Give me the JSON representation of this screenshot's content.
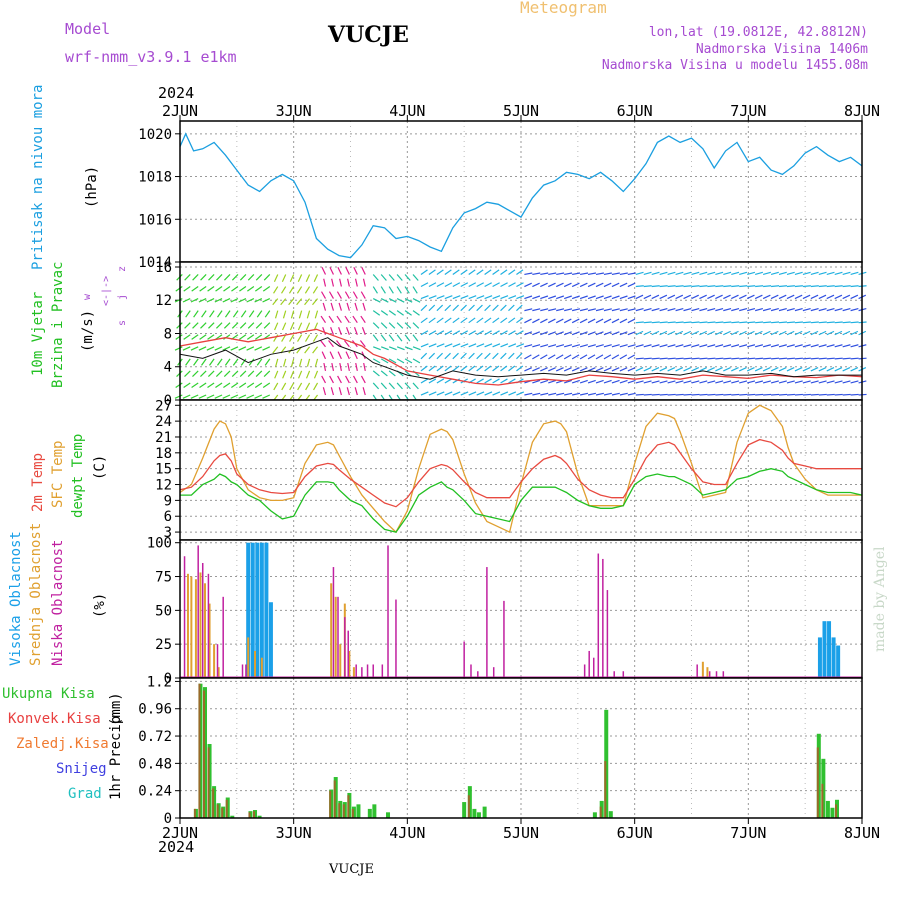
{
  "header": {
    "model_label": "Model",
    "model_name": "wrf-nmm_v3.9.1  e1km",
    "title": "VUCJE",
    "meteogram": "Meteogram",
    "coords": "lon,lat (19.0812E, 42.8812N)",
    "elevation": "Nadmorska Visina 1406m",
    "model_elevation": "Nadmorska Visina u modelu 1455.08m",
    "year_top": "2024",
    "year_bottom": "2024",
    "footer_station": "VUCJE",
    "watermark": "made by Angel"
  },
  "colors": {
    "pressure": "#1b9fe0",
    "wind_speed": "#111111",
    "wind_gust": "#e84040",
    "temp2m": "#e84a40",
    "sfc_temp": "#e0a030",
    "dewpt": "#22c022",
    "cloud_high": "#1ba0e8",
    "cloud_mid": "#e0a030",
    "cloud_low": "#c020a0",
    "precip_total": "#30c030",
    "precip_conv": "#e84040",
    "precip_frozen": "#f07a30",
    "snow": "#4040e0",
    "hail": "#20c0c0"
  },
  "chart_data": [
    {
      "type": "line",
      "name": "pressure",
      "ylabel": "Pritisak na nivou mora",
      "unit": "(hPa)",
      "ylim": [
        1014,
        1020.6
      ],
      "yticks": [
        1014,
        1016,
        1018,
        1020
      ],
      "grid": true,
      "x_days": [
        0,
        0.05,
        0.12,
        0.2,
        0.3,
        0.4,
        0.5,
        0.6,
        0.7,
        0.8,
        0.9,
        1.0,
        1.1,
        1.2,
        1.3,
        1.4,
        1.5,
        1.6,
        1.7,
        1.8,
        1.9,
        2.0,
        2.1,
        2.2,
        2.3,
        2.4,
        2.5,
        2.6,
        2.7,
        2.8,
        2.9,
        3.0,
        3.1,
        3.2,
        3.3,
        3.4,
        3.5,
        3.6,
        3.7,
        3.8,
        3.9,
        4.0,
        4.1,
        4.2,
        4.3,
        4.4,
        4.5,
        4.6,
        4.7,
        4.8,
        4.9,
        5.0,
        5.1,
        5.2,
        5.3,
        5.4,
        5.5,
        5.6,
        5.7,
        5.8,
        5.9,
        6.0
      ],
      "values": [
        1019.4,
        1020.0,
        1019.2,
        1019.3,
        1019.6,
        1019.0,
        1018.3,
        1017.6,
        1017.3,
        1017.8,
        1018.1,
        1017.8,
        1016.8,
        1015.1,
        1014.6,
        1014.3,
        1014.2,
        1014.8,
        1015.7,
        1015.6,
        1015.1,
        1015.2,
        1015.0,
        1014.7,
        1014.5,
        1015.6,
        1016.3,
        1016.5,
        1016.8,
        1016.7,
        1016.4,
        1016.1,
        1017.0,
        1017.6,
        1017.8,
        1018.2,
        1018.1,
        1017.9,
        1018.2,
        1017.8,
        1017.3,
        1017.9,
        1018.6,
        1019.6,
        1019.9,
        1019.6,
        1019.8,
        1019.3,
        1018.4,
        1019.2,
        1019.6,
        1018.7,
        1018.9,
        1018.3,
        1018.1,
        1018.5,
        1019.1,
        1019.4,
        1019.0,
        1018.7,
        1018.9,
        1018.5
      ]
    },
    {
      "type": "line",
      "name": "wind",
      "ylabel_1": "10m Vjetar",
      "ylabel_2": "Brzina i Pravac",
      "unit": "(m/s)",
      "compass_1": "w",
      "compass_2": "<-|->",
      "compass_3": "z",
      "compass_4": "s",
      "compass_5": "j",
      "ylim": [
        0,
        16.6
      ],
      "yticks": [
        0,
        4,
        8,
        12,
        16
      ],
      "grid": true,
      "x_days": [
        0,
        0.2,
        0.4,
        0.6,
        0.8,
        1.0,
        1.2,
        1.3,
        1.4,
        1.5,
        1.6,
        1.7,
        1.8,
        2.0,
        2.2,
        2.4,
        2.6,
        2.8,
        3.0,
        3.2,
        3.4,
        3.6,
        3.8,
        4.0,
        4.2,
        4.4,
        4.6,
        4.8,
        5.0,
        5.2,
        5.4,
        5.6,
        5.8,
        6.0
      ],
      "speed": [
        5.5,
        5.0,
        6.0,
        4.5,
        5.5,
        6.0,
        7.0,
        7.5,
        6.5,
        6.0,
        5.5,
        4.5,
        4.0,
        3.0,
        2.5,
        3.5,
        3.0,
        2.8,
        3.0,
        3.2,
        3.0,
        3.5,
        3.2,
        3.0,
        3.2,
        3.0,
        3.5,
        3.0,
        3.0,
        3.2,
        2.8,
        3.0,
        3.0,
        3.0
      ],
      "gust": [
        6.5,
        7.0,
        7.5,
        7.0,
        7.5,
        8.0,
        8.5,
        8.0,
        7.5,
        7.0,
        6.5,
        5.5,
        5.0,
        3.5,
        3.0,
        2.5,
        2.0,
        1.8,
        2.2,
        2.5,
        2.3,
        3.0,
        2.8,
        2.5,
        2.8,
        2.5,
        3.0,
        2.8,
        2.6,
        3.0,
        2.8,
        2.7,
        3.0,
        2.8
      ]
    },
    {
      "type": "line",
      "name": "temperature",
      "ylabel_1": "2m Temp",
      "ylabel_2": "SFC Temp",
      "ylabel_3": "dewpt Temp",
      "unit": "(C)",
      "ylim": [
        1.5,
        28
      ],
      "yticks": [
        3,
        6,
        9,
        12,
        15,
        18,
        21,
        24,
        27
      ],
      "grid": true,
      "x_days": [
        0,
        0.1,
        0.2,
        0.3,
        0.35,
        0.4,
        0.45,
        0.5,
        0.6,
        0.7,
        0.8,
        0.9,
        1.0,
        1.1,
        1.2,
        1.3,
        1.35,
        1.4,
        1.5,
        1.6,
        1.7,
        1.8,
        1.9,
        2.0,
        2.1,
        2.2,
        2.3,
        2.35,
        2.4,
        2.5,
        2.6,
        2.7,
        2.8,
        2.9,
        3.0,
        3.1,
        3.2,
        3.3,
        3.35,
        3.4,
        3.5,
        3.6,
        3.7,
        3.8,
        3.9,
        4.0,
        4.1,
        4.2,
        4.3,
        4.35,
        4.4,
        4.5,
        4.6,
        4.7,
        4.8,
        4.9,
        5.0,
        5.1,
        5.2,
        5.3,
        5.35,
        5.4,
        5.5,
        5.6,
        5.7,
        5.8,
        5.9,
        6.0
      ],
      "t2m": [
        11.0,
        11.5,
        13.5,
        16.5,
        17.5,
        17.8,
        16.5,
        14.0,
        12.0,
        11.0,
        10.5,
        10.3,
        10.5,
        13.5,
        15.5,
        16.0,
        15.8,
        14.8,
        13.0,
        11.5,
        10.0,
        8.5,
        7.8,
        9.5,
        12.5,
        15.0,
        15.8,
        15.5,
        14.8,
        12.5,
        10.5,
        9.5,
        9.5,
        9.5,
        12.5,
        15.0,
        16.8,
        17.5,
        17.0,
        16.0,
        13.0,
        11.0,
        10.0,
        9.5,
        9.5,
        13.0,
        17.0,
        19.5,
        20.0,
        19.5,
        18.0,
        15.0,
        12.5,
        12.0,
        12.0,
        16.0,
        19.5,
        20.5,
        20.0,
        18.5,
        17.0,
        16.0,
        15.5,
        15.0,
        15.0,
        15.0,
        15.0,
        15.0
      ],
      "sfc": [
        10.5,
        12.0,
        17.0,
        22.5,
        24.0,
        23.5,
        21.0,
        15.0,
        11.0,
        9.5,
        9.0,
        9.0,
        9.5,
        16.0,
        19.5,
        20.0,
        19.5,
        17.5,
        13.5,
        10.0,
        7.5,
        5.0,
        3.0,
        7.0,
        15.0,
        21.5,
        22.5,
        22.0,
        20.5,
        14.0,
        8.5,
        5.0,
        4.0,
        3.0,
        12.0,
        20.0,
        23.5,
        24.0,
        23.5,
        22.0,
        14.0,
        8.0,
        8.0,
        8.0,
        8.0,
        16.0,
        23.0,
        25.5,
        25.0,
        24.5,
        22.0,
        16.0,
        9.5,
        10.0,
        10.5,
        20.0,
        25.5,
        27.0,
        26.0,
        23.0,
        19.0,
        16.0,
        13.0,
        11.0,
        10.0,
        10.0,
        10.0,
        10.0
      ],
      "dewpt": [
        10.0,
        10.0,
        12.0,
        13.0,
        14.0,
        13.5,
        12.5,
        12.0,
        10.0,
        9.0,
        7.0,
        5.5,
        6.0,
        10.0,
        12.5,
        12.5,
        12.3,
        11.0,
        9.0,
        8.0,
        5.5,
        3.5,
        3.0,
        6.0,
        10.0,
        11.5,
        12.5,
        11.5,
        11.0,
        9.0,
        6.5,
        6.0,
        5.5,
        5.0,
        9.0,
        11.5,
        11.5,
        11.5,
        11.0,
        10.5,
        9.0,
        8.0,
        7.5,
        7.5,
        8.0,
        12.0,
        13.5,
        14.0,
        13.5,
        13.5,
        13.0,
        12.0,
        10.0,
        10.5,
        11.0,
        13.0,
        13.5,
        14.5,
        15.0,
        14.5,
        13.5,
        13.0,
        12.0,
        11.0,
        10.5,
        10.5,
        10.5,
        10.0
      ]
    },
    {
      "type": "bar",
      "name": "cloud_cover",
      "ylabel_1": "Visoka Oblacnost",
      "ylabel_2": "Srednja Oblacnost",
      "ylabel_3": "Niska Oblacnost",
      "unit": "(%)",
      "ylim": [
        0,
        102
      ],
      "yticks": [
        0,
        25,
        50,
        75,
        100
      ],
      "grid": true,
      "high": [
        [
          0.6,
          100
        ],
        [
          0.64,
          100
        ],
        [
          0.68,
          100
        ],
        [
          0.72,
          100
        ],
        [
          0.76,
          100
        ],
        [
          0.8,
          56
        ],
        [
          5.63,
          30
        ],
        [
          5.67,
          42
        ],
        [
          5.71,
          42
        ],
        [
          5.75,
          30
        ],
        [
          5.79,
          24
        ],
        [
          6.55,
          22
        ],
        [
          6.59,
          34
        ],
        [
          6.63,
          100
        ],
        [
          6.67,
          88
        ],
        [
          6.71,
          50
        ]
      ],
      "mid": [
        [
          0.07,
          77
        ],
        [
          0.1,
          75
        ],
        [
          0.14,
          73
        ],
        [
          0.18,
          78
        ],
        [
          0.22,
          70
        ],
        [
          0.26,
          55
        ],
        [
          0.3,
          25
        ],
        [
          0.34,
          8
        ],
        [
          0.6,
          30
        ],
        [
          0.66,
          20
        ],
        [
          0.72,
          15
        ],
        [
          1.33,
          70
        ],
        [
          1.37,
          60
        ],
        [
          1.41,
          25
        ],
        [
          1.45,
          55
        ],
        [
          1.49,
          20
        ],
        [
          1.53,
          8
        ],
        [
          4.6,
          12
        ],
        [
          4.64,
          8
        ],
        [
          6.4,
          5
        ],
        [
          6.52,
          25
        ],
        [
          6.56,
          28
        ],
        [
          6.6,
          40
        ],
        [
          6.64,
          30
        ],
        [
          6.72,
          20
        ],
        [
          6.76,
          5
        ]
      ],
      "low": [
        [
          0.04,
          90
        ],
        [
          0.16,
          98
        ],
        [
          0.2,
          85
        ],
        [
          0.25,
          77
        ],
        [
          0.33,
          25
        ],
        [
          0.38,
          60
        ],
        [
          0.55,
          10
        ],
        [
          0.58,
          10
        ],
        [
          1.35,
          82
        ],
        [
          1.39,
          60
        ],
        [
          1.45,
          45
        ],
        [
          1.48,
          35
        ],
        [
          1.55,
          10
        ],
        [
          1.6,
          8
        ],
        [
          1.65,
          10
        ],
        [
          1.7,
          10
        ],
        [
          1.78,
          10
        ],
        [
          1.83,
          98
        ],
        [
          1.9,
          58
        ],
        [
          2.5,
          27
        ],
        [
          2.56,
          10
        ],
        [
          2.62,
          5
        ],
        [
          2.7,
          82
        ],
        [
          2.76,
          8
        ],
        [
          2.85,
          57
        ],
        [
          3.56,
          10
        ],
        [
          3.6,
          20
        ],
        [
          3.64,
          15
        ],
        [
          3.68,
          92
        ],
        [
          3.72,
          88
        ],
        [
          3.76,
          65
        ],
        [
          3.82,
          5
        ],
        [
          3.9,
          5
        ],
        [
          4.55,
          10
        ],
        [
          4.66,
          5
        ],
        [
          4.72,
          5
        ],
        [
          4.78,
          5
        ],
        [
          6.55,
          85
        ],
        [
          6.6,
          35
        ],
        [
          6.64,
          28
        ],
        [
          6.68,
          10
        ]
      ]
    },
    {
      "type": "bar",
      "name": "precipitation",
      "ylabel_1": "1hr Precip",
      "unit": "(mm)",
      "legend": [
        "Ukupna  Kisa",
        "Konvek.Kisa",
        "Zaledj.Kisa",
        "Snijeg",
        "Grad"
      ],
      "ylim": [
        0,
        1.23
      ],
      "yticks": [
        0,
        0.24,
        0.48,
        0.72,
        0.96,
        1.2
      ],
      "ytick_labels": [
        "0",
        "0.24",
        "0.48",
        "0.72",
        "0.96",
        "1.2"
      ],
      "grid": true,
      "total": [
        [
          0.14,
          0.08
        ],
        [
          0.18,
          1.18
        ],
        [
          0.22,
          1.15
        ],
        [
          0.26,
          0.65
        ],
        [
          0.3,
          0.28
        ],
        [
          0.34,
          0.13
        ],
        [
          0.38,
          0.1
        ],
        [
          0.42,
          0.18
        ],
        [
          0.46,
          0.02
        ],
        [
          0.62,
          0.06
        ],
        [
          0.66,
          0.07
        ],
        [
          0.7,
          0.02
        ],
        [
          1.33,
          0.25
        ],
        [
          1.37,
          0.36
        ],
        [
          1.41,
          0.15
        ],
        [
          1.45,
          0.14
        ],
        [
          1.49,
          0.22
        ],
        [
          1.53,
          0.1
        ],
        [
          1.57,
          0.12
        ],
        [
          1.67,
          0.08
        ],
        [
          1.71,
          0.12
        ],
        [
          1.83,
          0.05
        ],
        [
          2.5,
          0.14
        ],
        [
          2.55,
          0.28
        ],
        [
          2.59,
          0.08
        ],
        [
          2.63,
          0.05
        ],
        [
          2.68,
          0.1
        ],
        [
          3.65,
          0.05
        ],
        [
          3.71,
          0.15
        ],
        [
          3.75,
          0.95
        ],
        [
          3.79,
          0.06
        ],
        [
          5.62,
          0.74
        ],
        [
          5.66,
          0.52
        ],
        [
          5.7,
          0.15
        ],
        [
          5.74,
          0.09
        ],
        [
          5.78,
          0.16
        ]
      ],
      "conv": [
        [
          0.14,
          0.08
        ],
        [
          0.18,
          1.18
        ],
        [
          0.22,
          1.12
        ],
        [
          0.26,
          0.62
        ],
        [
          0.3,
          0.26
        ],
        [
          0.34,
          0.12
        ],
        [
          0.38,
          0.09
        ],
        [
          0.42,
          0.16
        ],
        [
          0.62,
          0.05
        ],
        [
          0.66,
          0.06
        ],
        [
          1.33,
          0.24
        ],
        [
          1.37,
          0.33
        ],
        [
          1.41,
          0.13
        ],
        [
          1.45,
          0.12
        ],
        [
          1.49,
          0.2
        ],
        [
          1.53,
          0.08
        ],
        [
          2.55,
          0.2
        ],
        [
          3.75,
          0.5
        ],
        [
          3.71,
          0.1
        ],
        [
          5.62,
          0.62
        ],
        [
          5.66,
          0.3
        ],
        [
          5.78,
          0.12
        ]
      ]
    }
  ],
  "x_axis": {
    "days": [
      "2JUN",
      "3JUN",
      "4JUN",
      "5JUN",
      "6JUN",
      "7JUN",
      "8JUN"
    ]
  }
}
